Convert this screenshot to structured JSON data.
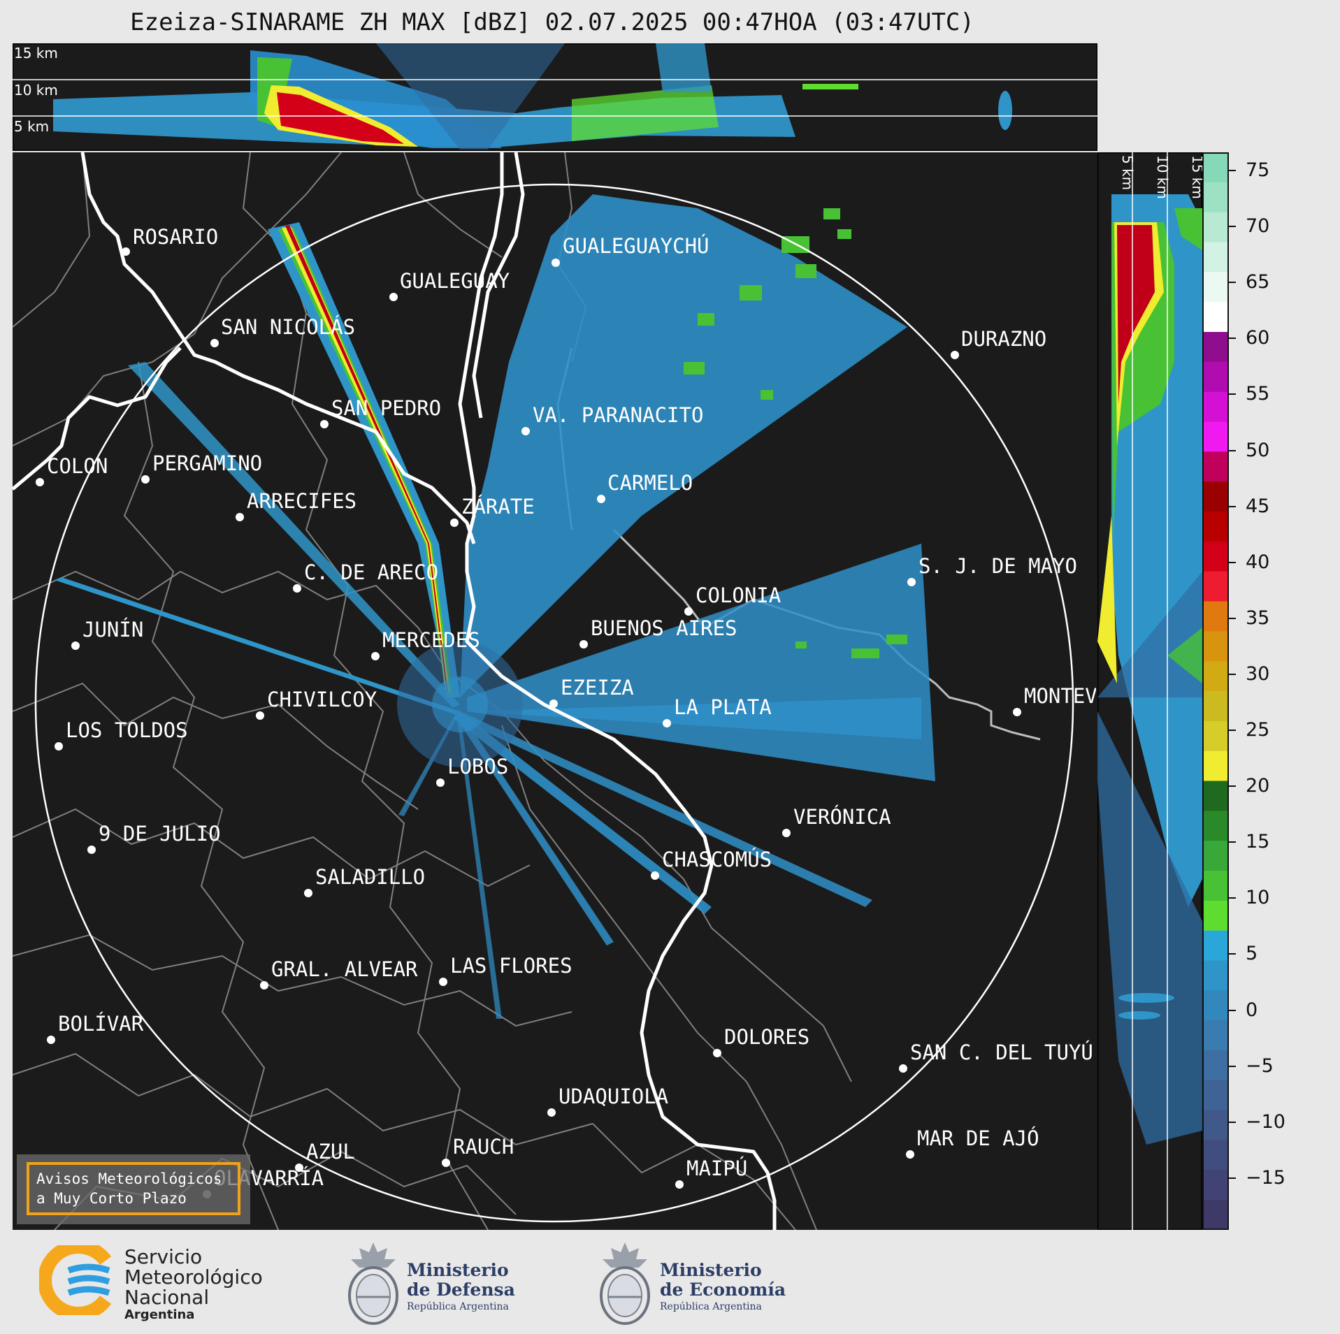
{
  "title": "Ezeiza-SINARAME ZH MAX [dBZ] 02.07.2025 00:47HOA (03:47UTC)",
  "height_labels": [
    "15 km",
    "10 km",
    "5 km"
  ],
  "colorbar": {
    "ticks": [
      "75",
      "70",
      "65",
      "60",
      "55",
      "50",
      "45",
      "40",
      "35",
      "30",
      "25",
      "20",
      "15",
      "10",
      "5",
      "0",
      "−5",
      "−10",
      "−15"
    ],
    "colors": [
      "#85d9b8",
      "#9ee0c4",
      "#b8e9d3",
      "#d2f2e3",
      "#ecf9f2",
      "#ffffff",
      "#8e0e8e",
      "#b00cb0",
      "#d410d4",
      "#f01af0",
      "#c0005a",
      "#9a0000",
      "#b80000",
      "#d4001a",
      "#ee1c30",
      "#e07a10",
      "#d8940f",
      "#d2aa14",
      "#ccbb20",
      "#d6cc2a",
      "#f0ec30",
      "#1f6a1f",
      "#2a8a2a",
      "#38a838",
      "#48c234",
      "#5edc30",
      "#2aa7d8",
      "#2f95c8",
      "#3288bd",
      "#3a7bb0",
      "#3f6ea3",
      "#3f6396",
      "#40588a",
      "#404d7e",
      "#404373",
      "#3d3a68"
    ]
  },
  "cities": [
    {
      "name": "ROSARIO"
    },
    {
      "name": "GUALEGUAYCHÚ"
    },
    {
      "name": "GUALEGUAY"
    },
    {
      "name": "SAN NICOLÁS"
    },
    {
      "name": "DURAZNO"
    },
    {
      "name": "SAN PEDRO"
    },
    {
      "name": "VA. PARANACITO"
    },
    {
      "name": "COLON"
    },
    {
      "name": "PERGAMINO"
    },
    {
      "name": "CARMELO"
    },
    {
      "name": "ARRECIFES"
    },
    {
      "name": "ZÁRATE"
    },
    {
      "name": "S. J. DE MAYO"
    },
    {
      "name": "C. DE ARECO"
    },
    {
      "name": "COLONIA"
    },
    {
      "name": "JUNÍN"
    },
    {
      "name": "BUENOS AIRES"
    },
    {
      "name": "MERCEDES"
    },
    {
      "name": "EZEIZA"
    },
    {
      "name": "MONTEVIDEO"
    },
    {
      "name": "CHIVILCOY"
    },
    {
      "name": "LA PLATA"
    },
    {
      "name": "LOS TOLDOS"
    },
    {
      "name": "LOBOS"
    },
    {
      "name": "VERÓNICA"
    },
    {
      "name": "9 DE JULIO"
    },
    {
      "name": "CHASCOMÚS"
    },
    {
      "name": "SALADILLO"
    },
    {
      "name": "GRAL. ALVEAR"
    },
    {
      "name": "LAS FLORES"
    },
    {
      "name": "BOLÍVAR"
    },
    {
      "name": "DOLORES"
    },
    {
      "name": "SAN C. DEL TUYÚ"
    },
    {
      "name": "UDAQUIOLA"
    },
    {
      "name": "MAR DE AJÓ"
    },
    {
      "name": "AZUL"
    },
    {
      "name": "RAUCH"
    },
    {
      "name": "OLAVARRÍA"
    },
    {
      "name": "MAIPÚ"
    }
  ],
  "alert": {
    "line1": "Avisos Meteorológicos",
    "line2": "a Muy Corto Plazo"
  },
  "logos": {
    "smn": {
      "line1": "Servicio",
      "line2": "Meteorológico",
      "line3": "Nacional",
      "line4": "Argentina"
    },
    "defensa": {
      "line1": "Ministerio",
      "line2": "de Defensa",
      "line3": "República Argentina"
    },
    "economia": {
      "line1": "Ministerio",
      "line2": "de Economía",
      "line3": "República Argentina"
    }
  }
}
